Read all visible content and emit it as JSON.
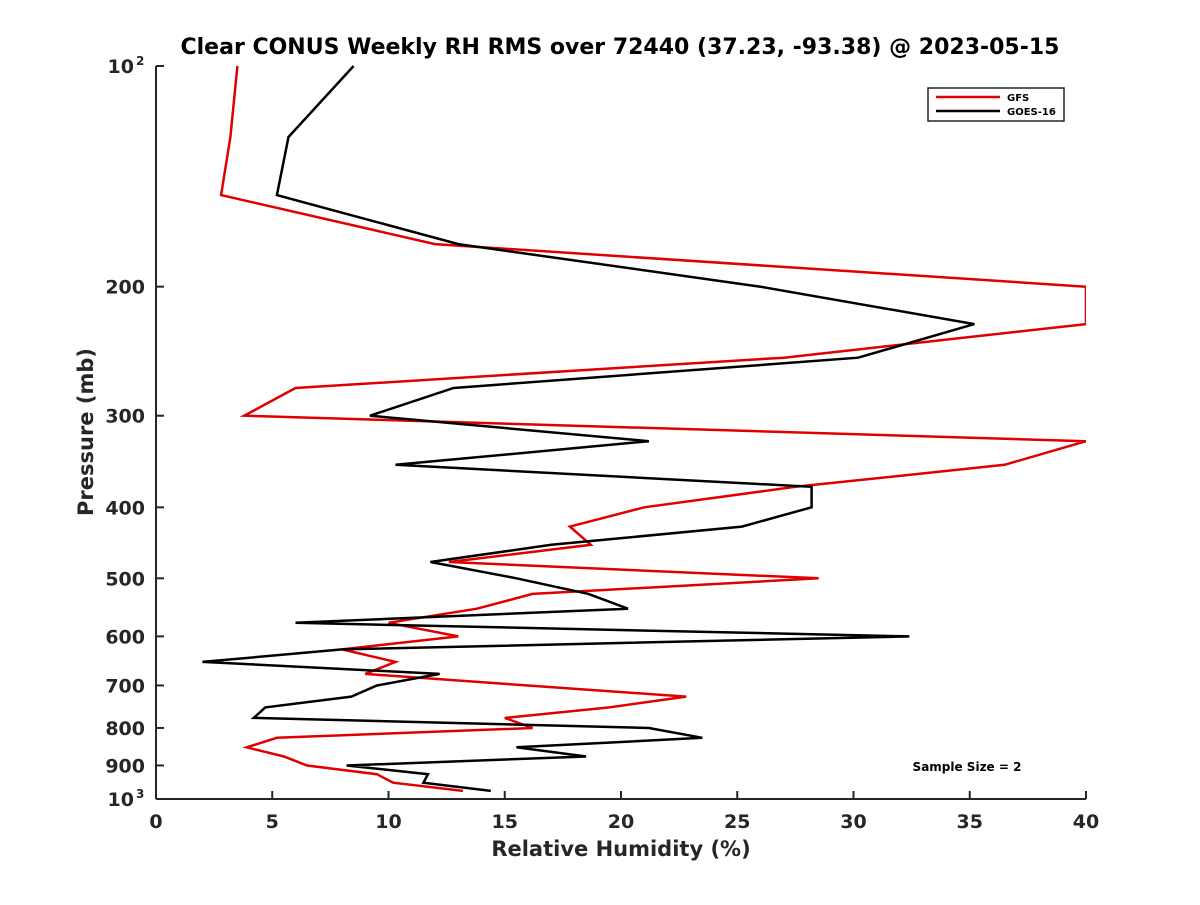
{
  "chart_data": {
    "type": "line",
    "title": "Clear CONUS Weekly RH RMS over 72440 (37.23, -93.38) @ 2023-05-15",
    "xlabel": "Relative Humidity (%)",
    "ylabel": "Pressure (mb)",
    "xlim": [
      0,
      40
    ],
    "ylim": [
      100,
      1000
    ],
    "y_scale": "log",
    "y_reversed": true,
    "grid": false,
    "legend_position": "top-right",
    "x_ticks": [
      {
        "value": 0,
        "label": "0"
      },
      {
        "value": 5,
        "label": "5"
      },
      {
        "value": 10,
        "label": "10"
      },
      {
        "value": 15,
        "label": "15"
      },
      {
        "value": 20,
        "label": "20"
      },
      {
        "value": 25,
        "label": "25"
      },
      {
        "value": 30,
        "label": "30"
      },
      {
        "value": 35,
        "label": "35"
      },
      {
        "value": 40,
        "label": "40"
      }
    ],
    "y_ticks": [
      {
        "value": 100,
        "base": "10",
        "sup": "2"
      },
      {
        "value": 200,
        "label": "200"
      },
      {
        "value": 300,
        "label": "300"
      },
      {
        "value": 400,
        "label": "400"
      },
      {
        "value": 500,
        "label": "500"
      },
      {
        "value": 600,
        "label": "600"
      },
      {
        "value": 700,
        "label": "700"
      },
      {
        "value": 800,
        "label": "800"
      },
      {
        "value": 900,
        "label": "900"
      },
      {
        "value": 1000,
        "base": "10",
        "sup": "3"
      }
    ],
    "annotation": "Sample Size = 2",
    "series": [
      {
        "name": "GFS",
        "color": "#e00000",
        "points": [
          {
            "p": 100,
            "rh": 3.5
          },
          {
            "p": 125,
            "rh": 3.2
          },
          {
            "p": 150,
            "rh": 2.8
          },
          {
            "p": 175,
            "rh": 12.0
          },
          {
            "p": 200,
            "rh": 40.0
          },
          {
            "p": 225,
            "rh": 40.0
          },
          {
            "p": 250,
            "rh": 27.0
          },
          {
            "p": 275,
            "rh": 6.0
          },
          {
            "p": 300,
            "rh": 3.8
          },
          {
            "p": 325,
            "rh": 40.0
          },
          {
            "p": 350,
            "rh": 36.5
          },
          {
            "p": 375,
            "rh": 27.5
          },
          {
            "p": 400,
            "rh": 21.0
          },
          {
            "p": 425,
            "rh": 17.8
          },
          {
            "p": 450,
            "rh": 18.7
          },
          {
            "p": 475,
            "rh": 12.6
          },
          {
            "p": 500,
            "rh": 28.5
          },
          {
            "p": 525,
            "rh": 16.2
          },
          {
            "p": 550,
            "rh": 13.8
          },
          {
            "p": 575,
            "rh": 10.0
          },
          {
            "p": 600,
            "rh": 13.0
          },
          {
            "p": 625,
            "rh": 8.0
          },
          {
            "p": 650,
            "rh": 10.3
          },
          {
            "p": 675,
            "rh": 9.0
          },
          {
            "p": 700,
            "rh": 16.0
          },
          {
            "p": 725,
            "rh": 22.8
          },
          {
            "p": 750,
            "rh": 19.5
          },
          {
            "p": 775,
            "rh": 15.0
          },
          {
            "p": 800,
            "rh": 16.2
          },
          {
            "p": 825,
            "rh": 5.2
          },
          {
            "p": 850,
            "rh": 3.9
          },
          {
            "p": 875,
            "rh": 5.5
          },
          {
            "p": 900,
            "rh": 6.5
          },
          {
            "p": 925,
            "rh": 9.5
          },
          {
            "p": 950,
            "rh": 10.2
          },
          {
            "p": 975,
            "rh": 13.2
          }
        ]
      },
      {
        "name": "GOES-16",
        "color": "#000000",
        "points": [
          {
            "p": 100,
            "rh": 8.5
          },
          {
            "p": 125,
            "rh": 5.7
          },
          {
            "p": 150,
            "rh": 5.2
          },
          {
            "p": 175,
            "rh": 13.0
          },
          {
            "p": 200,
            "rh": 26.0
          },
          {
            "p": 225,
            "rh": 35.2
          },
          {
            "p": 250,
            "rh": 30.2
          },
          {
            "p": 275,
            "rh": 12.8
          },
          {
            "p": 300,
            "rh": 9.2
          },
          {
            "p": 325,
            "rh": 21.2
          },
          {
            "p": 350,
            "rh": 10.3
          },
          {
            "p": 375,
            "rh": 28.2
          },
          {
            "p": 400,
            "rh": 28.2
          },
          {
            "p": 425,
            "rh": 25.2
          },
          {
            "p": 450,
            "rh": 17.0
          },
          {
            "p": 475,
            "rh": 11.8
          },
          {
            "p": 500,
            "rh": 15.5
          },
          {
            "p": 525,
            "rh": 18.6
          },
          {
            "p": 550,
            "rh": 20.3
          },
          {
            "p": 575,
            "rh": 6.0
          },
          {
            "p": 600,
            "rh": 32.4
          },
          {
            "p": 625,
            "rh": 8.0
          },
          {
            "p": 650,
            "rh": 2.0
          },
          {
            "p": 675,
            "rh": 12.2
          },
          {
            "p": 700,
            "rh": 9.5
          },
          {
            "p": 725,
            "rh": 8.4
          },
          {
            "p": 750,
            "rh": 4.7
          },
          {
            "p": 775,
            "rh": 4.2
          },
          {
            "p": 800,
            "rh": 21.2
          },
          {
            "p": 825,
            "rh": 23.5
          },
          {
            "p": 850,
            "rh": 15.5
          },
          {
            "p": 875,
            "rh": 18.5
          },
          {
            "p": 900,
            "rh": 8.2
          },
          {
            "p": 925,
            "rh": 11.7
          },
          {
            "p": 950,
            "rh": 11.5
          },
          {
            "p": 975,
            "rh": 14.4
          }
        ]
      }
    ]
  }
}
